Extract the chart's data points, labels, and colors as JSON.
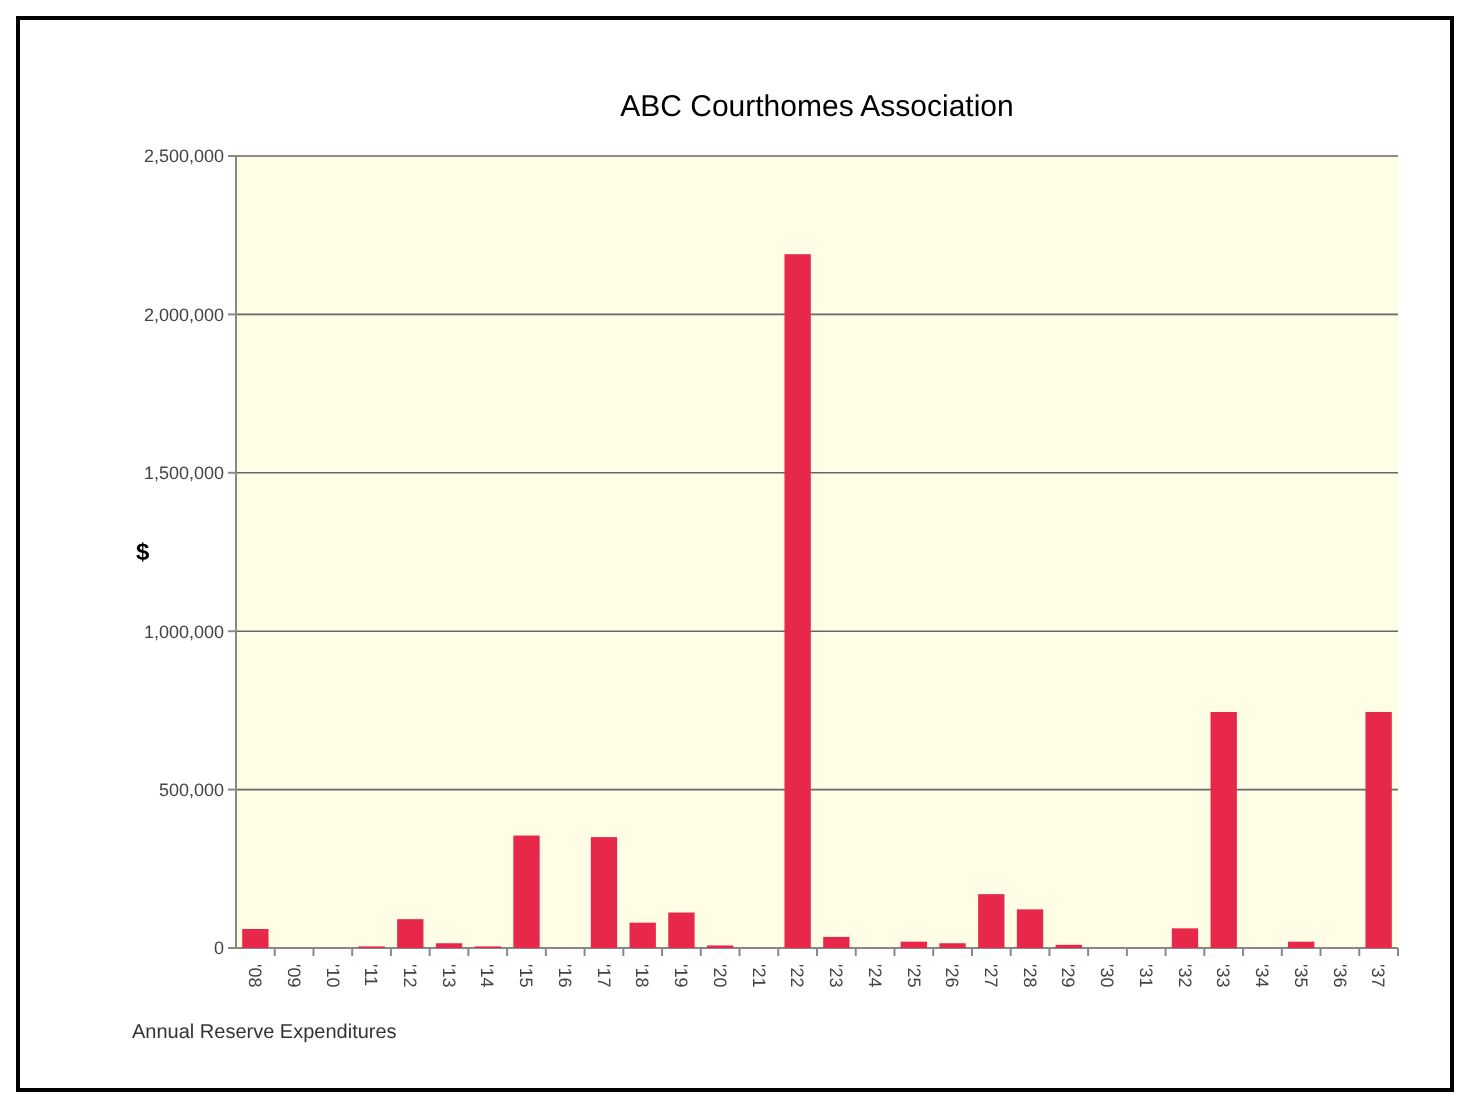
{
  "chart_data": {
    "type": "bar",
    "title": "ABC Courthomes Association",
    "ylabel": "$",
    "categories": [
      "'08",
      "'09",
      "'10",
      "'11",
      "'12",
      "'13",
      "'14",
      "'15",
      "'16",
      "'17",
      "'18",
      "'19",
      "'20",
      "'21",
      "'22",
      "'23",
      "'24",
      "'25",
      "'26",
      "'27",
      "'28",
      "'29",
      "'30",
      "'31",
      "'32",
      "'33",
      "'34",
      "'35",
      "'36",
      "'37"
    ],
    "values": [
      60000,
      0,
      0,
      5000,
      91000,
      15000,
      5000,
      355000,
      0,
      350000,
      80000,
      112000,
      8000,
      0,
      2190000,
      35000,
      0,
      20000,
      15000,
      170000,
      122000,
      10000,
      0,
      0,
      62000,
      745000,
      0,
      20000,
      0,
      745000
    ],
    "color": "#e8284a",
    "ylim": [
      0,
      2500000
    ],
    "yticks": [
      {
        "value": 0,
        "label": "0"
      },
      {
        "value": 500000,
        "label": "500,000"
      },
      {
        "value": 1000000,
        "label": "1,000,000"
      },
      {
        "value": 1500000,
        "label": "1,500,000"
      },
      {
        "value": 2000000,
        "label": "2,000,000"
      },
      {
        "value": 2500000,
        "label": "2,500,000"
      }
    ],
    "grid": "y",
    "annotations": [
      "Annual Reserve Expenditures"
    ]
  }
}
